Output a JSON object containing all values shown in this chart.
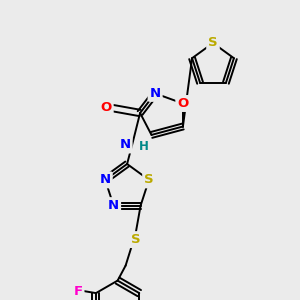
{
  "bg_color": "#ebebeb",
  "atom_colors": {
    "O": "#ff0000",
    "N": "#0000ff",
    "S": "#bbaa00",
    "F": "#ff00cc",
    "H": "#008888"
  },
  "bond_lw": 1.4,
  "font_size": 9.5
}
